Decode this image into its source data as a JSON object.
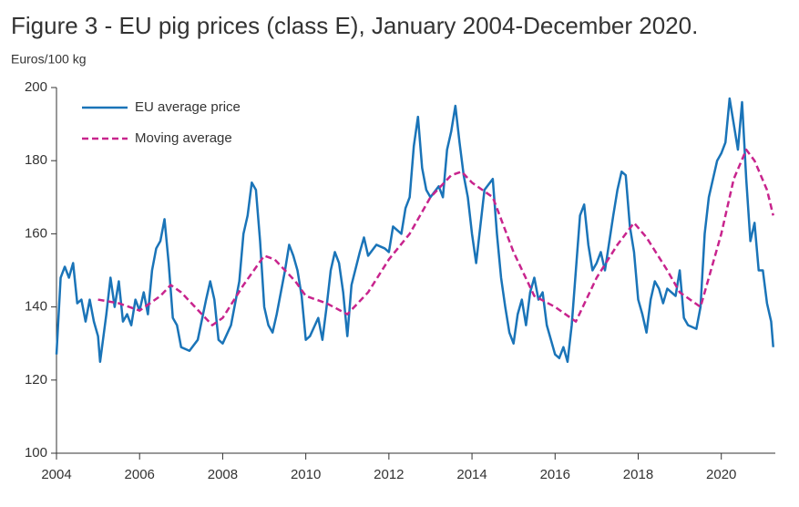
{
  "chart_data": {
    "type": "line",
    "title": "Figure 3 - EU pig prices (class E), January 2004-December 2020.",
    "y_label": "Euros/100 kg",
    "xlim": [
      2004,
      2021.3
    ],
    "xticks": [
      2004,
      2006,
      2008,
      2010,
      2012,
      2014,
      2016,
      2018,
      2020
    ],
    "ylim": [
      100,
      200
    ],
    "yticks": [
      100,
      120,
      140,
      160,
      180,
      200
    ],
    "legend": "top-left",
    "series": [
      {
        "name": "EU average price",
        "color": "#1a74b8",
        "dash": false,
        "x": [
          2004.0,
          2004.1,
          2004.2,
          2004.3,
          2004.4,
          2004.5,
          2004.6,
          2004.7,
          2004.8,
          2004.9,
          2005.0,
          2005.05,
          2005.2,
          2005.3,
          2005.4,
          2005.5,
          2005.6,
          2005.7,
          2005.8,
          2005.9,
          2006.0,
          2006.1,
          2006.2,
          2006.3,
          2006.4,
          2006.5,
          2006.6,
          2006.7,
          2006.8,
          2006.9,
          2007.0,
          2007.2,
          2007.4,
          2007.6,
          2007.7,
          2007.8,
          2007.9,
          2008.0,
          2008.2,
          2008.4,
          2008.5,
          2008.6,
          2008.7,
          2008.8,
          2008.9,
          2009.0,
          2009.1,
          2009.2,
          2009.3,
          2009.5,
          2009.6,
          2009.7,
          2009.8,
          2009.9,
          2010.0,
          2010.1,
          2010.3,
          2010.4,
          2010.5,
          2010.6,
          2010.7,
          2010.8,
          2010.9,
          2011.0,
          2011.1,
          2011.3,
          2011.4,
          2011.5,
          2011.7,
          2011.9,
          2012.0,
          2012.1,
          2012.3,
          2012.4,
          2012.5,
          2012.6,
          2012.7,
          2012.8,
          2012.9,
          2013.0,
          2013.2,
          2013.3,
          2013.4,
          2013.5,
          2013.6,
          2013.7,
          2013.8,
          2013.9,
          2014.0,
          2014.1,
          2014.2,
          2014.3,
          2014.5,
          2014.6,
          2014.7,
          2014.8,
          2014.9,
          2015.0,
          2015.1,
          2015.2,
          2015.3,
          2015.4,
          2015.5,
          2015.6,
          2015.7,
          2015.8,
          2016.0,
          2016.1,
          2016.2,
          2016.3,
          2016.4,
          2016.5,
          2016.6,
          2016.7,
          2016.8,
          2016.9,
          2017.0,
          2017.1,
          2017.2,
          2017.4,
          2017.5,
          2017.6,
          2017.7,
          2017.8,
          2017.9,
          2018.0,
          2018.1,
          2018.2,
          2018.3,
          2018.4,
          2018.5,
          2018.6,
          2018.7,
          2018.9,
          2019.0,
          2019.1,
          2019.2,
          2019.4,
          2019.5,
          2019.6,
          2019.7,
          2019.8,
          2019.9,
          2020.0,
          2020.1,
          2020.2,
          2020.3,
          2020.4,
          2020.5,
          2020.6,
          2020.7,
          2020.8,
          2020.9,
          2021.0,
          2021.1,
          2021.2,
          2021.25
        ],
        "values": [
          127,
          148,
          151,
          148,
          152,
          141,
          142,
          136,
          142,
          136,
          132,
          125,
          138,
          148,
          140,
          147,
          136,
          138,
          135,
          142,
          139,
          144,
          138,
          150,
          156,
          158,
          164,
          152,
          137,
          135,
          129,
          128,
          131,
          142,
          147,
          142,
          131,
          130,
          135,
          147,
          160,
          165,
          174,
          172,
          158,
          140,
          135,
          133,
          138,
          150,
          157,
          154,
          150,
          143,
          131,
          132,
          137,
          131,
          140,
          150,
          155,
          152,
          144,
          132,
          146,
          155,
          159,
          154,
          157,
          156,
          155,
          162,
          160,
          167,
          170,
          184,
          192,
          178,
          172,
          170,
          173,
          170,
          183,
          188,
          195,
          185,
          176,
          170,
          160,
          152,
          162,
          172,
          175,
          160,
          148,
          140,
          133,
          130,
          138,
          142,
          135,
          144,
          148,
          142,
          144,
          135,
          127,
          126,
          129,
          125,
          135,
          150,
          165,
          168,
          157,
          150,
          152,
          155,
          150,
          165,
          172,
          177,
          176,
          162,
          155,
          142,
          138,
          133,
          142,
          147,
          145,
          141,
          145,
          143,
          150,
          137,
          135,
          134,
          140,
          160,
          170,
          175,
          180,
          182,
          185,
          197,
          190,
          183,
          196,
          175,
          158,
          163,
          150,
          150,
          141,
          136,
          129
        ]
      },
      {
        "name": "Moving average",
        "color": "#c8248d",
        "dash": true,
        "x": [
          2005,
          2005.5,
          2006,
          2006.5,
          2006.75,
          2007,
          2007.5,
          2007.75,
          2008,
          2008.5,
          2009,
          2009.25,
          2009.75,
          2010,
          2010.5,
          2011,
          2011.5,
          2012,
          2012.5,
          2013,
          2013.5,
          2013.75,
          2014,
          2014.5,
          2015,
          2015.5,
          2016,
          2016.5,
          2017,
          2017.5,
          2017.9,
          2018.2,
          2018.7,
          2019,
          2019.5,
          2020,
          2020.3,
          2020.6,
          2020.8,
          2021.1,
          2021.25
        ],
        "values": [
          142,
          141,
          139,
          143,
          146,
          144,
          138,
          135,
          137,
          146,
          154,
          153,
          147,
          143,
          141,
          138,
          144,
          153,
          160,
          170,
          176,
          177,
          174,
          170,
          155,
          143,
          140,
          136,
          148,
          157,
          163,
          159,
          150,
          144,
          140,
          160,
          175,
          183,
          180,
          172,
          165
        ]
      }
    ]
  }
}
